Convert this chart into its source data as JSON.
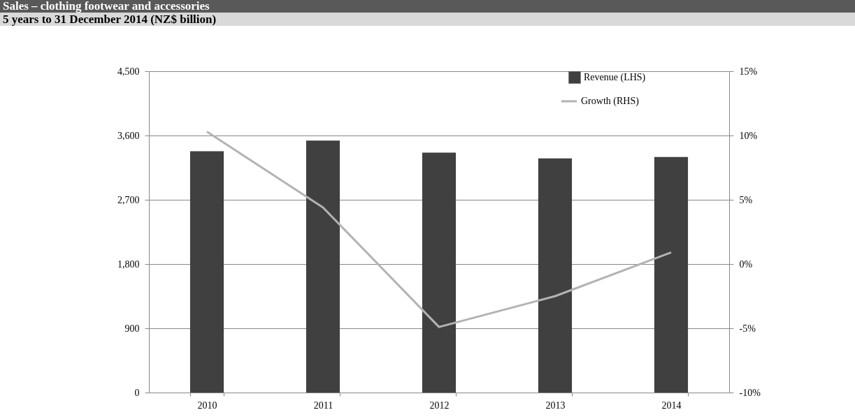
{
  "chart_data": {
    "type": "bar",
    "title": "Sales – clothing  footwear and accessories",
    "subtitle": "5 years to 31 December 2014 (NZ$ billion)",
    "categories": [
      "2010",
      "2011",
      "2012",
      "2013",
      "2014"
    ],
    "series": [
      {
        "name": "Revenue (LHS)",
        "color": "#404040",
        "values": [
          3380,
          3530,
          3360,
          3280,
          3300
        ]
      },
      {
        "name": "Growth (RHS)",
        "type": "line",
        "axis": "y2",
        "color": "#b3b3b3",
        "values": [
          10.3,
          4.4,
          -4.9,
          -2.5,
          0.9
        ]
      }
    ],
    "ylim": [
      0,
      4500
    ],
    "yticks": [
      {
        "value": 0,
        "label": "0"
      },
      {
        "value": 900,
        "label": "900"
      },
      {
        "value": 1800,
        "label": "1,800"
      },
      {
        "value": 2700,
        "label": "2,700"
      },
      {
        "value": 3600,
        "label": "3,600"
      },
      {
        "value": 4500,
        "label": "4,500"
      }
    ],
    "y2lim": [
      -10,
      15
    ],
    "y2ticks": [
      {
        "value": -10,
        "label": "-10%"
      },
      {
        "value": -5,
        "label": "-5%"
      },
      {
        "value": 0,
        "label": "0%"
      },
      {
        "value": 5,
        "label": "5%"
      },
      {
        "value": 10,
        "label": "10%"
      },
      {
        "value": 15,
        "label": "15%"
      }
    ],
    "grid": "y",
    "legend": "top right",
    "marker": "none",
    "line_style": "solid"
  }
}
